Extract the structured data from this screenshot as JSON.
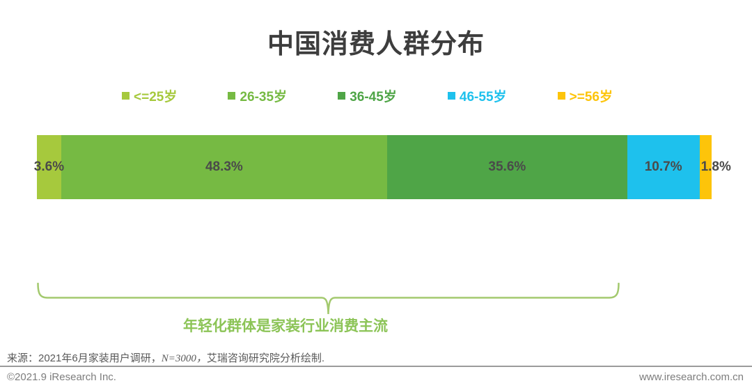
{
  "chart_data": {
    "type": "bar",
    "variant": "horizontal-stacked-100-percent",
    "title": "中国消费人群分布",
    "unit": "%",
    "legend_position": "top",
    "grid": false,
    "categories": [
      "<=25岁",
      "26-35岁",
      "36-45岁",
      "46-55岁",
      ">=56岁"
    ],
    "values": [
      3.6,
      48.3,
      35.6,
      10.7,
      1.8
    ],
    "data_labels": [
      "3.6%",
      "48.3%",
      "35.6%",
      "10.7%",
      "1.8%"
    ],
    "colors": [
      "#a6c93d",
      "#76ba43",
      "#4fa547",
      "#1ec1ed",
      "#fdc40a"
    ],
    "annotation": {
      "text": "年轻化群体是家装行业消费主流",
      "color": "#8cc457",
      "bracket_color": "#a3c96e"
    }
  },
  "source_note": {
    "prefix": "来源：2021年6月家装用户调研，",
    "sample": "N=3000，",
    "suffix": "艾瑞咨询研究院分析绘制."
  },
  "footer": {
    "left": "©2021.9 iResearch Inc.",
    "right": "www.iresearch.com.cn"
  }
}
